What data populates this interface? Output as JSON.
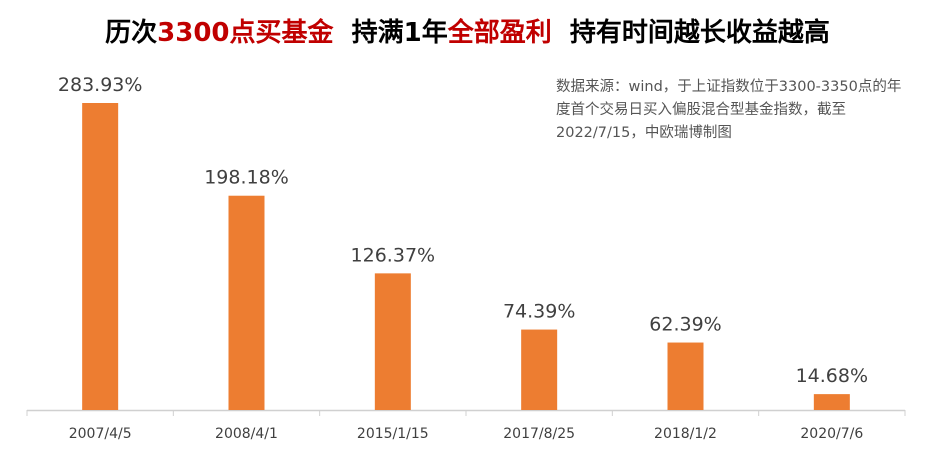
{
  "chart_data": {
    "type": "bar",
    "title_parts": [
      {
        "text": "历次",
        "color": "#000000"
      },
      {
        "text": "3300点买基金",
        "color": "#c00000"
      },
      {
        "text": "  持满1年",
        "color": "#000000"
      },
      {
        "text": "全部盈利",
        "color": "#c00000"
      },
      {
        "text": "  持有时间越长收益越高",
        "color": "#000000"
      }
    ],
    "note": "数据来源：wind，于上证指数位于3300-3350点的年度首个交易日买入偏股混合型基金指数，截至2022/7/15，中欧瑞博制图",
    "categories": [
      "2007/4/5",
      "2008/4/1",
      "2015/1/15",
      "2017/8/25",
      "2018/1/2",
      "2020/7/6"
    ],
    "values": [
      283.93,
      198.18,
      126.37,
      74.39,
      62.39,
      14.68
    ],
    "labels": [
      "283.93%",
      "198.18%",
      "126.37%",
      "74.39%",
      "62.39%",
      "14.68%"
    ],
    "ylim": [
      0,
      300
    ],
    "bar_color": "#ed7d31",
    "grid": false
  }
}
